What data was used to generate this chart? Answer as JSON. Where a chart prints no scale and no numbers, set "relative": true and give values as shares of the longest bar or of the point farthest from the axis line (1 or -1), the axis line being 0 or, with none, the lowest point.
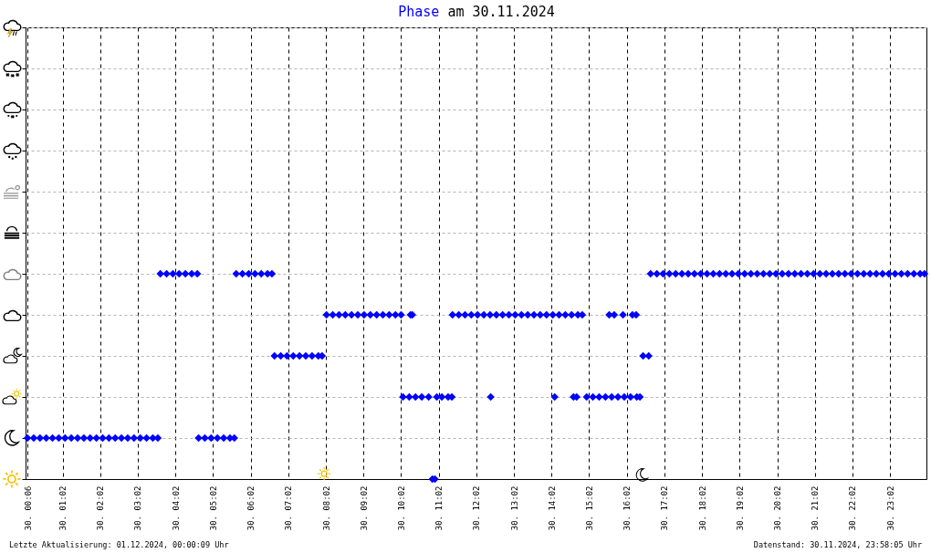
{
  "chart_data": {
    "type": "scatter",
    "title": "Phase am 30.11.2024",
    "relative": true,
    "series": [
      {
        "color": "#0000ff",
        "x": [
          "2024-11-30T00:06",
          "2024-11-30T00:16",
          "2024-11-30T00:26",
          "2024-11-30T00:36",
          "2024-11-30T00:46",
          "2024-11-30T00:56",
          "2024-11-30T01:06",
          "2024-11-30T01:16",
          "2024-11-30T01:26",
          "2024-11-30T01:36",
          "2024-11-30T01:46",
          "2024-11-30T01:56",
          "2024-11-30T02:06",
          "2024-11-30T02:16",
          "2024-11-30T02:26",
          "2024-11-30T02:36",
          "2024-11-30T02:46",
          "2024-11-30T02:56",
          "2024-11-30T03:06",
          "2024-11-30T03:16",
          "2024-11-30T03:26",
          "2024-11-30T03:34",
          "2024-11-30T03:38",
          "2024-11-30T03:48",
          "2024-11-30T03:58",
          "2024-11-30T04:08",
          "2024-11-30T04:18",
          "2024-11-30T04:28",
          "2024-11-30T04:37",
          "2024-11-30T04:39",
          "2024-11-30T04:49",
          "2024-11-30T04:59",
          "2024-11-30T05:09",
          "2024-11-30T05:19",
          "2024-11-30T05:29",
          "2024-11-30T05:36",
          "2024-11-30T05:39",
          "2024-11-30T05:49",
          "2024-11-30T05:59",
          "2024-11-30T06:09",
          "2024-11-30T06:19",
          "2024-11-30T06:29",
          "2024-11-30T06:36",
          "2024-11-30T06:40",
          "2024-11-30T06:50",
          "2024-11-30T07:00",
          "2024-11-30T07:10",
          "2024-11-30T07:20",
          "2024-11-30T07:30",
          "2024-11-30T07:40",
          "2024-11-30T07:50",
          "2024-11-30T07:56",
          "2024-11-30T08:03",
          "2024-11-30T08:13",
          "2024-11-30T08:23",
          "2024-11-30T08:33",
          "2024-11-30T08:43",
          "2024-11-30T08:53",
          "2024-11-30T09:03",
          "2024-11-30T09:13",
          "2024-11-30T09:23",
          "2024-11-30T09:33",
          "2024-11-30T09:43",
          "2024-11-30T09:53",
          "2024-11-30T10:02",
          "2024-11-30T10:05",
          "2024-11-30T10:15",
          "2024-11-30T10:25",
          "2024-11-30T10:35",
          "2024-11-30T10:46",
          "2024-11-30T10:17",
          "2024-11-30T10:20",
          "2024-11-30T10:52",
          "2024-11-30T10:56",
          "2024-11-30T10:59",
          "2024-11-30T11:07",
          "2024-11-30T11:17",
          "2024-11-30T11:23",
          "2024-11-30T11:24",
          "2024-11-30T11:34",
          "2024-11-30T11:44",
          "2024-11-30T11:54",
          "2024-11-30T12:04",
          "2024-11-30T12:14",
          "2024-11-30T12:24",
          "2024-11-30T12:34",
          "2024-11-30T12:44",
          "2024-11-30T12:54",
          "2024-11-30T13:04",
          "2024-11-30T13:14",
          "2024-11-30T13:24",
          "2024-11-30T13:34",
          "2024-11-30T13:44",
          "2024-11-30T13:54",
          "2024-11-30T14:04",
          "2024-11-30T14:14",
          "2024-11-30T14:24",
          "2024-11-30T14:34",
          "2024-11-30T14:44",
          "2024-11-30T14:51",
          "2024-11-30T12:25",
          "2024-11-30T14:07",
          "2024-11-30T14:37",
          "2024-11-30T14:42",
          "2024-11-30T14:58",
          "2024-11-30T15:08",
          "2024-11-30T15:18",
          "2024-11-30T15:28",
          "2024-11-30T15:38",
          "2024-11-30T15:48",
          "2024-11-30T15:58",
          "2024-11-30T16:08",
          "2024-11-30T16:18",
          "2024-11-30T16:23",
          "2024-11-30T15:34",
          "2024-11-30T15:42",
          "2024-11-30T15:56",
          "2024-11-30T16:11",
          "2024-11-30T16:17",
          "2024-11-30T16:28",
          "2024-11-30T16:37",
          "2024-11-30T16:40",
          "2024-11-30T16:50",
          "2024-11-30T17:00",
          "2024-11-30T17:10",
          "2024-11-30T17:20",
          "2024-11-30T17:30",
          "2024-11-30T17:40",
          "2024-11-30T17:50",
          "2024-11-30T18:00",
          "2024-11-30T18:10",
          "2024-11-30T18:20",
          "2024-11-30T18:30",
          "2024-11-30T18:40",
          "2024-11-30T18:50",
          "2024-11-30T19:00",
          "2024-11-30T19:10",
          "2024-11-30T19:20",
          "2024-11-30T19:30",
          "2024-11-30T19:40",
          "2024-11-30T19:50",
          "2024-11-30T20:00",
          "2024-11-30T20:10",
          "2024-11-30T20:20",
          "2024-11-30T20:30",
          "2024-11-30T20:40",
          "2024-11-30T20:50",
          "2024-11-30T21:00",
          "2024-11-30T21:10",
          "2024-11-30T21:20",
          "2024-11-30T21:30",
          "2024-11-30T21:40",
          "2024-11-30T21:50",
          "2024-11-30T22:00",
          "2024-11-30T22:10",
          "2024-11-30T22:20",
          "2024-11-30T22:30",
          "2024-11-30T22:40",
          "2024-11-30T22:50",
          "2024-11-30T23:00",
          "2024-11-30T23:10",
          "2024-11-30T23:20",
          "2024-11-30T23:30",
          "2024-11-30T23:40",
          "2024-11-30T23:50",
          "2024-11-30T23:57"
        ],
        "values": [
          0.2,
          0.2,
          0.2,
          0.2,
          0.2,
          0.2,
          0.2,
          0.2,
          0.2,
          0.2,
          0.2,
          0.2,
          0.2,
          0.2,
          0.2,
          0.2,
          0.2,
          0.2,
          0.2,
          0.2,
          0.2,
          0.2,
          1,
          1,
          1,
          1,
          1,
          1,
          1,
          0.2,
          0.2,
          0.2,
          0.2,
          0.2,
          0.2,
          0.2,
          1,
          1,
          1,
          1,
          1,
          1,
          1,
          0.6,
          0.6,
          0.6,
          0.6,
          0.6,
          0.6,
          0.6,
          0.6,
          0.6,
          0.8,
          0.8,
          0.8,
          0.8,
          0.8,
          0.8,
          0.8,
          0.8,
          0.8,
          0.8,
          0.8,
          0.8,
          0.8,
          0.4,
          0.4,
          0.4,
          0.4,
          0.4,
          0.8,
          0.8,
          0,
          0,
          0.4,
          0.4,
          0.4,
          0.4,
          0.8,
          0.8,
          0.8,
          0.8,
          0.8,
          0.8,
          0.8,
          0.8,
          0.8,
          0.8,
          0.8,
          0.8,
          0.8,
          0.8,
          0.8,
          0.8,
          0.8,
          0.8,
          0.8,
          0.8,
          0.8,
          0.8,
          0.4,
          0.4,
          0.4,
          0.4,
          0.4,
          0.4,
          0.4,
          0.4,
          0.4,
          0.4,
          0.4,
          0.4,
          0.4,
          0.4,
          0.8,
          0.8,
          0.8,
          0.8,
          0.8,
          0.6,
          0.6,
          1,
          1,
          1,
          1,
          1,
          1,
          1,
          1,
          1,
          1,
          1,
          1,
          1,
          1,
          1,
          1,
          1,
          1,
          1,
          1,
          1,
          1,
          1,
          1,
          1,
          1,
          1,
          1,
          1,
          1,
          1,
          1,
          1,
          1,
          1,
          1,
          1,
          1,
          1,
          1,
          1,
          1,
          1,
          1,
          1
        ]
      }
    ],
    "marker": "diamond",
    "xlim": [
      "2024-11-30T00:03",
      "2024-12-01T00:00"
    ],
    "xticks": [
      {
        "value": "2024-11-30T00:06",
        "label": "30. 00:06"
      },
      {
        "value": "2024-11-30T01:02",
        "label": "30. 01:02"
      },
      {
        "value": "2024-11-30T02:02",
        "label": "30. 02:02"
      },
      {
        "value": "2024-11-30T03:02",
        "label": "30. 03:02"
      },
      {
        "value": "2024-11-30T04:02",
        "label": "30. 04:02"
      },
      {
        "value": "2024-11-30T05:02",
        "label": "30. 05:02"
      },
      {
        "value": "2024-11-30T06:02",
        "label": "30. 06:02"
      },
      {
        "value": "2024-11-30T07:02",
        "label": "30. 07:02"
      },
      {
        "value": "2024-11-30T08:02",
        "label": "30. 08:02"
      },
      {
        "value": "2024-11-30T09:02",
        "label": "30. 09:02"
      },
      {
        "value": "2024-11-30T10:02",
        "label": "30. 10:02"
      },
      {
        "value": "2024-11-30T11:02",
        "label": "30. 11:02"
      },
      {
        "value": "2024-11-30T12:02",
        "label": "30. 12:02"
      },
      {
        "value": "2024-11-30T13:02",
        "label": "30. 13:02"
      },
      {
        "value": "2024-11-30T14:02",
        "label": "30. 14:02"
      },
      {
        "value": "2024-11-30T15:02",
        "label": "30. 15:02"
      },
      {
        "value": "2024-11-30T16:02",
        "label": "30. 16:02"
      },
      {
        "value": "2024-11-30T17:02",
        "label": "30. 17:02"
      },
      {
        "value": "2024-11-30T18:02",
        "label": "30. 18:02"
      },
      {
        "value": "2024-11-30T19:02",
        "label": "30. 19:02"
      },
      {
        "value": "2024-11-30T20:02",
        "label": "30. 20:02"
      },
      {
        "value": "2024-11-30T21:02",
        "label": "30. 21:02"
      },
      {
        "value": "2024-11-30T22:02",
        "label": "30. 22:02"
      },
      {
        "value": "2024-11-30T23:02",
        "label": "30. 23:02"
      }
    ],
    "grid": true,
    "tick_labels": "x",
    "annotations": [
      "Letzte Aktualisierung: 01.12.2024, 00:00:09 Uhr",
      "Datenstand: 30.11.2024, 23:58:05 Uhr"
    ]
  }
}
